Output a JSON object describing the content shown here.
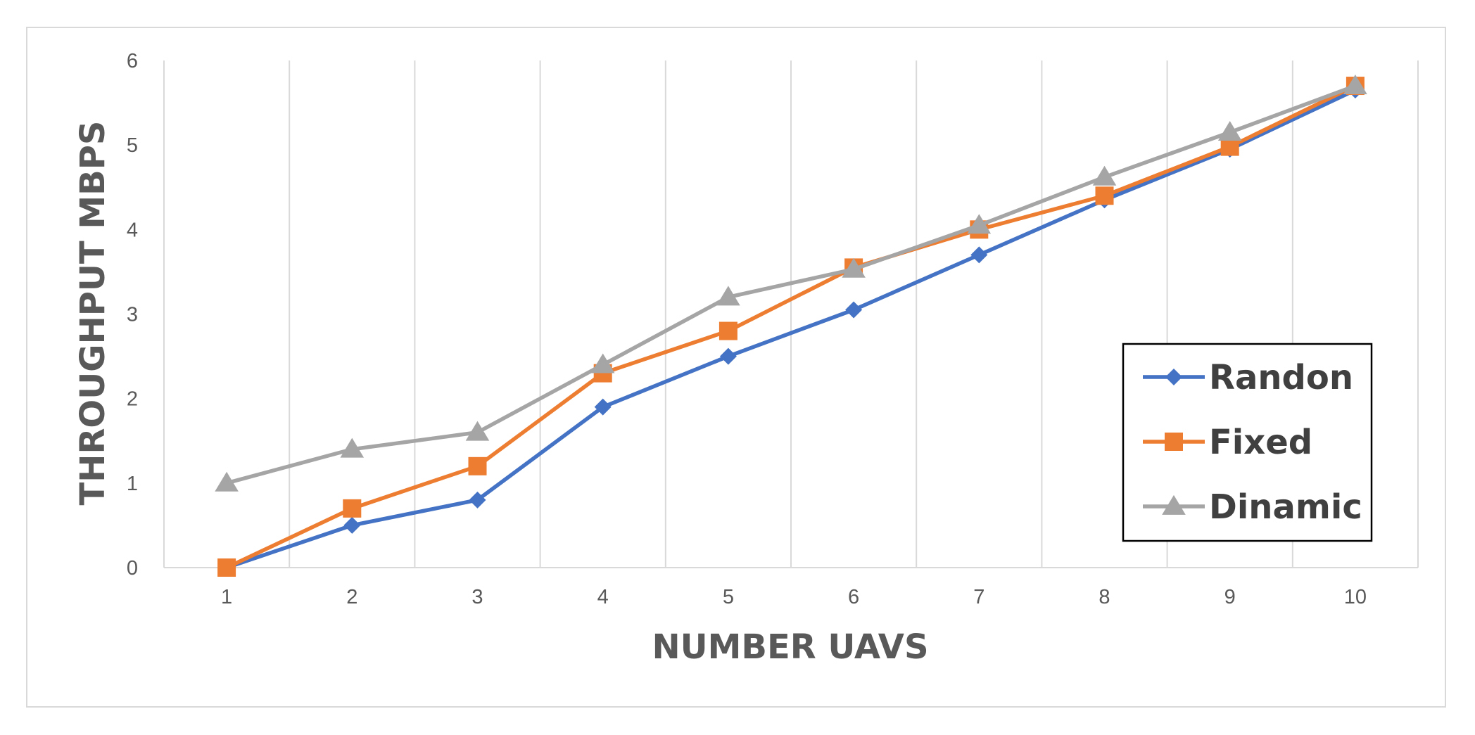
{
  "chart_data": {
    "type": "line",
    "title": "",
    "xlabel": "NUMBER UAVS",
    "ylabel": "THROUGHPUT MBPS",
    "x": [
      1,
      2,
      3,
      4,
      5,
      6,
      7,
      8,
      9,
      10
    ],
    "ylim": [
      0,
      6
    ],
    "yticks": [
      0,
      1,
      2,
      3,
      4,
      5,
      6
    ],
    "grid": "vertical",
    "legend_position": "bottom-right",
    "series": [
      {
        "name": "Randon",
        "color": "#4472c4",
        "marker": "diamond",
        "values": [
          0,
          0.5,
          0.8,
          1.9,
          2.5,
          3.05,
          3.7,
          4.35,
          4.95,
          5.65
        ]
      },
      {
        "name": "Fixed",
        "color": "#ed7d31",
        "marker": "square",
        "values": [
          0,
          0.7,
          1.2,
          2.3,
          2.8,
          3.55,
          4.0,
          4.4,
          4.98,
          5.7
        ]
      },
      {
        "name": "Dinamic",
        "color": "#a5a5a5",
        "marker": "triangle",
        "values": [
          1.0,
          1.4,
          1.6,
          2.4,
          3.2,
          3.53,
          4.05,
          4.62,
          5.15,
          5.7
        ]
      }
    ]
  }
}
